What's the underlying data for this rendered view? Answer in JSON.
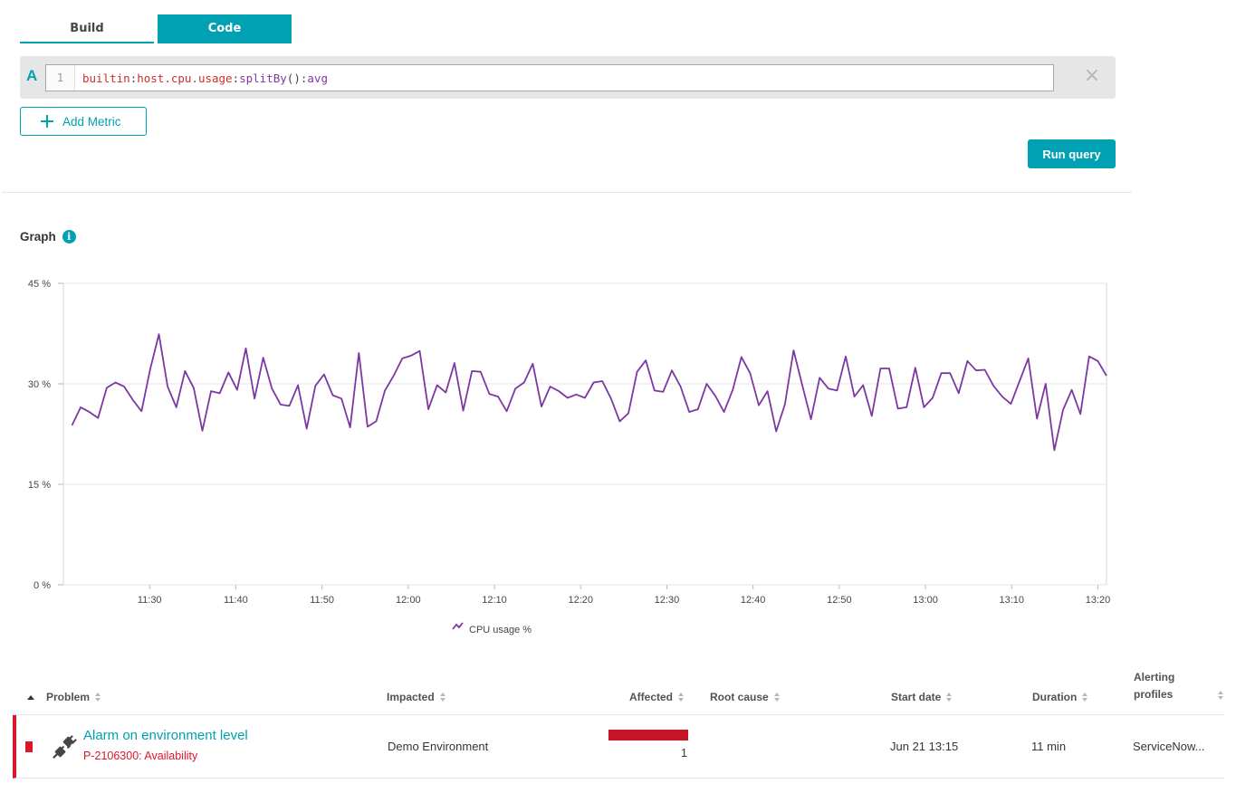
{
  "tabs": {
    "build": "Build",
    "code": "Code"
  },
  "query": {
    "letter": "A",
    "line_number": "1",
    "code": {
      "ns1": "builtin",
      "sep1": ":",
      "ns2": "host.cpu.usage",
      "sep2": ":",
      "fn1": "splitBy",
      "parens": "()",
      "sep3": ":",
      "fn2": "avg"
    },
    "close_icon": "close-icon"
  },
  "add_metric_label": "Add Metric",
  "run_query_label": "Run query",
  "graph": {
    "title": "Graph",
    "info_icon": "i"
  },
  "chart_data": {
    "type": "line",
    "ylim": [
      0,
      45
    ],
    "y_ticks": [
      "0 %",
      "15 %",
      "30 %",
      "45 %"
    ],
    "y_tick_values": [
      0,
      15,
      30,
      45
    ],
    "x_ticks": [
      "11:30",
      "11:40",
      "11:50",
      "12:00",
      "12:10",
      "12:20",
      "12:30",
      "12:40",
      "12:50",
      "13:00",
      "13:10",
      "13:20"
    ],
    "x_range_minutes": [
      0,
      121
    ],
    "x_tick_minutes": [
      10,
      20,
      30,
      40,
      50,
      60,
      70,
      80,
      90,
      100,
      110,
      120
    ],
    "color": "#7c38a1",
    "series": [
      {
        "name": "CPU usage %",
        "values": [
          23.8,
          26.5,
          25.8,
          24.9,
          29.4,
          30.2,
          29.6,
          27.6,
          25.9,
          32.2,
          37.4,
          29.6,
          26.5,
          31.9,
          29.4,
          23.0,
          28.9,
          28.6,
          31.7,
          29.1,
          35.3,
          27.8,
          33.9,
          29.3,
          26.9,
          26.7,
          29.8,
          23.3,
          29.7,
          31.4,
          28.3,
          27.8,
          23.5,
          34.6,
          23.6,
          24.4,
          29.0,
          31.2,
          33.8,
          34.2,
          34.9,
          26.2,
          29.8,
          28.7,
          33.1,
          26.0,
          31.9,
          31.8,
          28.5,
          28.1,
          25.9,
          29.3,
          30.2,
          33.0,
          26.6,
          29.6,
          28.9,
          27.9,
          28.4,
          27.9,
          30.2,
          30.4,
          27.8,
          24.4,
          25.6,
          31.8,
          33.5,
          29.0,
          28.8,
          32.0,
          29.6,
          25.8,
          26.2,
          30.0,
          28.2,
          25.8,
          29.1,
          34.0,
          31.6,
          26.8,
          28.9,
          22.9,
          26.9,
          35.0,
          29.8,
          24.7,
          30.9,
          29.3,
          29.0,
          34.1,
          28.1,
          29.8,
          25.2,
          32.3,
          32.3,
          26.3,
          26.5,
          32.4,
          26.5,
          27.9,
          31.6,
          31.6,
          28.6,
          33.4,
          32.0,
          32.1,
          29.7,
          28.1,
          27.0,
          30.4,
          33.8,
          24.8,
          30.0,
          20.1,
          26.1,
          29.1,
          25.5,
          34.1,
          33.4,
          31.2
        ]
      }
    ]
  },
  "table": {
    "headers": {
      "problem": "Problem",
      "impacted": "Impacted",
      "affected": "Affected",
      "root_cause": "Root cause",
      "start_date": "Start date",
      "duration": "Duration",
      "alerting_line1": "Alerting",
      "alerting_line2": "profiles"
    },
    "rows": [
      {
        "title": "Alarm on environment level",
        "subtitle": "P-2106300: Availability",
        "impacted": "Demo Environment",
        "affected": "1",
        "root_cause": "",
        "start_date": "Jun 21 13:15",
        "duration": "11 min",
        "alerting_profiles": "ServiceNow..."
      }
    ]
  }
}
